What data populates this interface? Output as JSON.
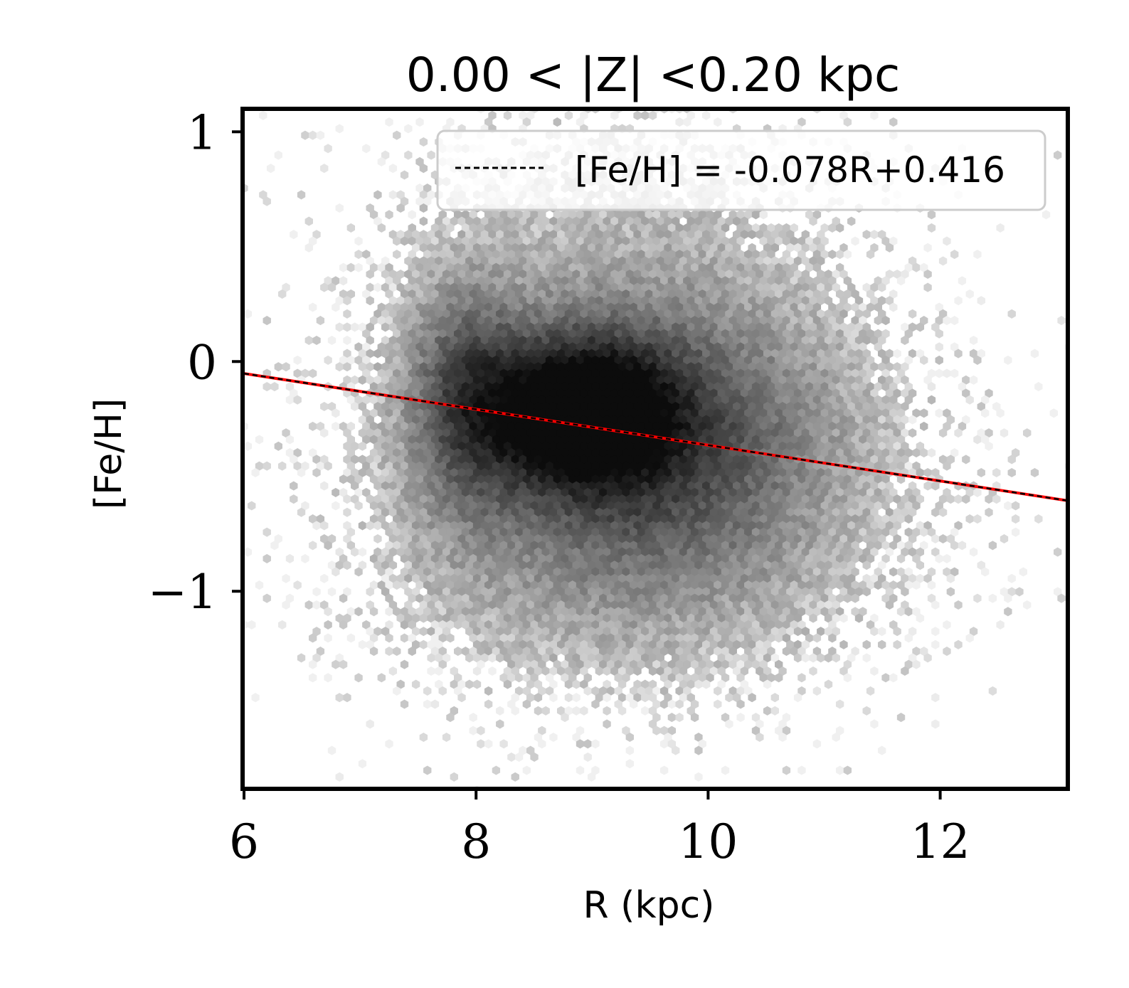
{
  "chart_data": {
    "type": "hexbin",
    "title": "0.00 < |Z| <0.20 kpc",
    "xlabel": "R (kpc)",
    "ylabel": "[Fe/H]",
    "xlim": [
      6.0,
      13.1
    ],
    "ylim": [
      -1.86,
      1.1
    ],
    "xticks": [
      6,
      8,
      10,
      12
    ],
    "xtick_labels": [
      "6",
      "8",
      "10",
      "12"
    ],
    "yticks": [
      1,
      0,
      -1
    ],
    "ytick_labels": [
      "1",
      "0",
      "−1"
    ],
    "grid": false,
    "colormap": "greys",
    "density_model": {
      "components": [
        {
          "center": [
            8.9,
            -0.22
          ],
          "sigma": [
            0.55,
            0.22
          ],
          "weight": 1.0
        },
        {
          "center": [
            9.6,
            -0.35
          ],
          "sigma": [
            1.05,
            0.38
          ],
          "weight": 0.55
        },
        {
          "center": [
            7.9,
            -0.15
          ],
          "sigma": [
            0.35,
            0.35
          ],
          "weight": 0.5
        },
        {
          "center": [
            9.3,
            0.1
          ],
          "sigma": [
            1.2,
            0.6
          ],
          "weight": 0.18
        },
        {
          "center": [
            9.2,
            -0.9
          ],
          "sigma": [
            1.3,
            0.35
          ],
          "weight": 0.2
        }
      ]
    },
    "fit_line": {
      "slope": -0.078,
      "intercept": 0.416,
      "x_range": [
        6.0,
        13.1
      ],
      "color": "#ff0000",
      "style": "solid"
    },
    "legend": {
      "placement": "top-right",
      "entries": [
        {
          "label": "[Fe/H] = -0.078R+0.416",
          "style": "dashed",
          "color": "#000000"
        }
      ]
    }
  }
}
